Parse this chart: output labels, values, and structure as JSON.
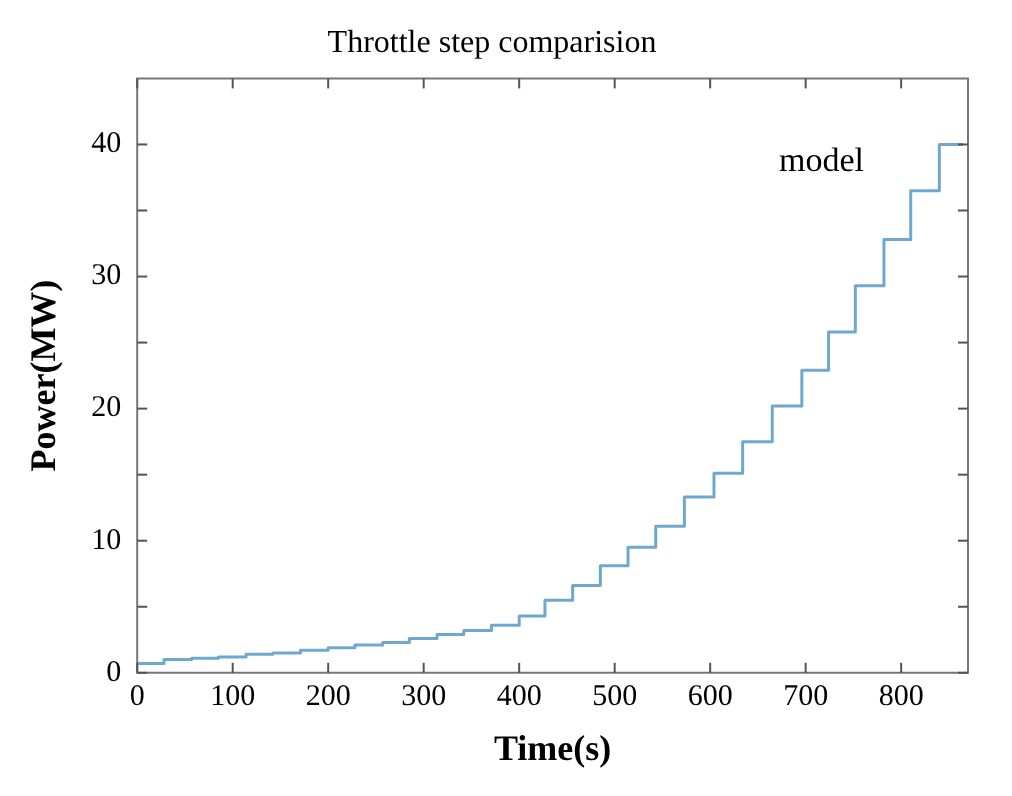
{
  "chart_data": {
    "type": "step",
    "title": "Throttle step comparision",
    "xlabel": "Time(s)",
    "ylabel": "Power(MW)",
    "annotations": [
      "model"
    ],
    "x": [
      0,
      28,
      57,
      85,
      114,
      142,
      171,
      200,
      228,
      257,
      285,
      314,
      342,
      371,
      400,
      427,
      456,
      485,
      514,
      543,
      573,
      604,
      634,
      665,
      696,
      724,
      752,
      782,
      810,
      840,
      865
    ],
    "series": [
      {
        "color": "#6fa8cf",
        "values": [
          0.7,
          1.0,
          1.1,
          1.2,
          1.4,
          1.5,
          1.7,
          1.9,
          2.1,
          2.3,
          2.6,
          2.9,
          3.2,
          3.6,
          4.3,
          5.5,
          6.6,
          8.1,
          9.5,
          11.1,
          13.3,
          15.1,
          17.5,
          20.2,
          22.9,
          25.8,
          29.3,
          32.8,
          36.5,
          40.0,
          40.0
        ]
      }
    ],
    "xlim": [
      0,
      870
    ],
    "xticks": [
      0,
      100,
      200,
      300,
      400,
      500,
      600,
      700,
      800
    ],
    "ylim": [
      0,
      45
    ],
    "yticks": [
      0,
      {
        "value": 5,
        "label": null
      },
      10,
      {
        "value": 15,
        "label": null
      },
      20,
      {
        "value": 25,
        "label": null
      },
      30,
      {
        "value": 35,
        "label": null
      },
      40
    ],
    "grid": false,
    "legend": false,
    "marker": "none",
    "line_style": "solid"
  }
}
